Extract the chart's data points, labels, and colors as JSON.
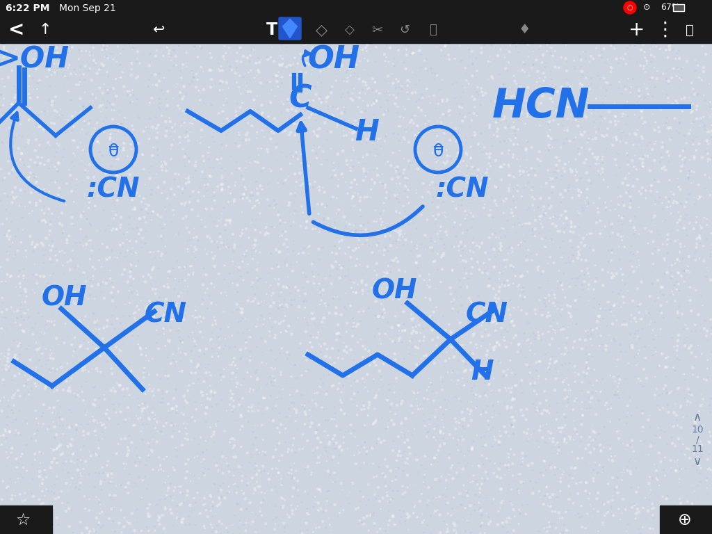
{
  "bg": "#cdd5e0",
  "ink": "#2271e8",
  "lw": 4.0,
  "toolbar_bg": "#1a1a1a",
  "bottom_bar_bg": "#1a1a1a"
}
